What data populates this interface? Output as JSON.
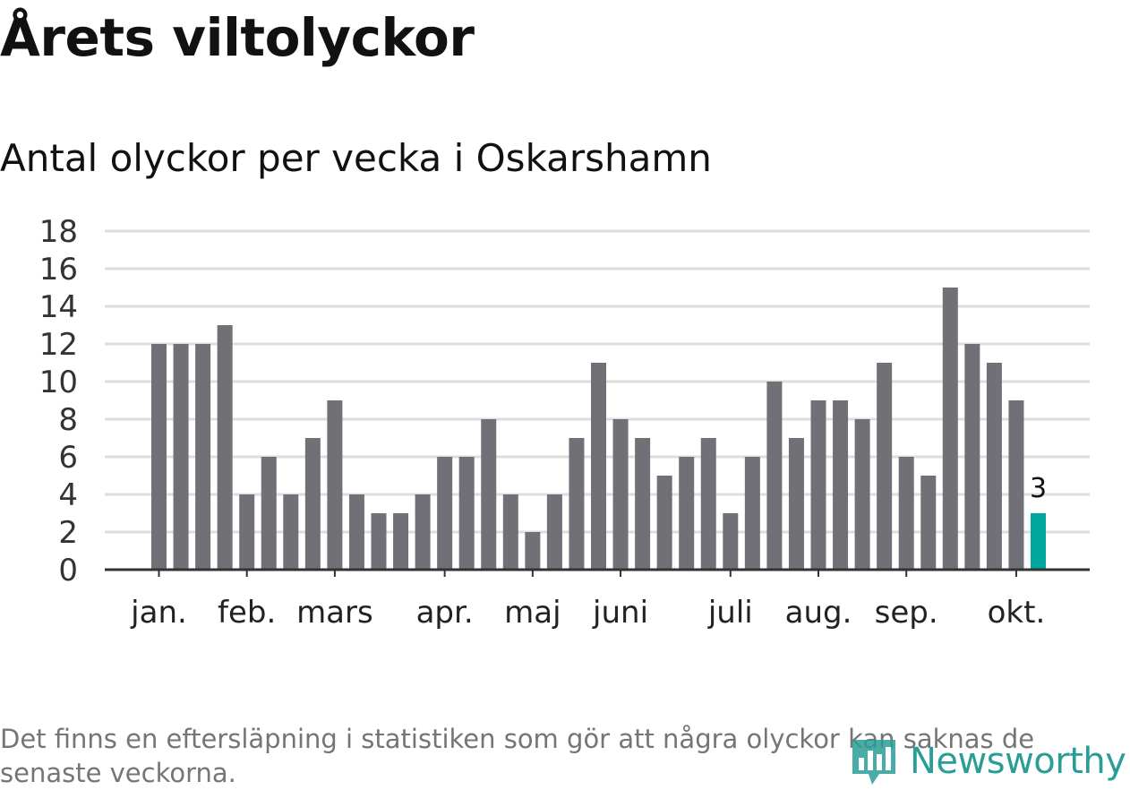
{
  "header": {
    "title": "Årets viltolyckor",
    "subtitle": "Antal olyckor per vecka i Oskarshamn"
  },
  "chart_data": {
    "type": "bar",
    "title": "Årets viltolyckor",
    "subtitle": "Antal olyckor per vecka i Oskarshamn",
    "xlabel": "",
    "ylabel": "",
    "ylim": [
      0,
      18
    ],
    "yticks": [
      0,
      2,
      4,
      6,
      8,
      10,
      12,
      14,
      16,
      18
    ],
    "grid": true,
    "legend": "none",
    "month_labels": [
      {
        "label": "jan.",
        "bar_index": 0
      },
      {
        "label": "feb.",
        "bar_index": 4
      },
      {
        "label": "mars",
        "bar_index": 8
      },
      {
        "label": "apr.",
        "bar_index": 13
      },
      {
        "label": "maj",
        "bar_index": 17
      },
      {
        "label": "juni",
        "bar_index": 21
      },
      {
        "label": "juli",
        "bar_index": 26
      },
      {
        "label": "aug.",
        "bar_index": 30
      },
      {
        "label": "sep.",
        "bar_index": 34
      },
      {
        "label": "okt.",
        "bar_index": 39
      }
    ],
    "values": [
      12,
      12,
      12,
      13,
      4,
      6,
      4,
      7,
      9,
      4,
      3,
      3,
      4,
      6,
      6,
      8,
      4,
      2,
      4,
      7,
      11,
      8,
      7,
      5,
      6,
      7,
      3,
      6,
      10,
      7,
      9,
      9,
      8,
      11,
      6,
      5,
      15,
      12,
      11,
      9,
      3
    ],
    "highlight_index": 40,
    "highlight_label": "3",
    "colors": {
      "bar": "#717077",
      "highlight": "#00a69c",
      "grid": "#dddddd",
      "axis": "#333333"
    }
  },
  "footer": {
    "note": "Det finns en eftersläpning i statistiken som gör att några olyckor kan saknas de senaste veckorna.",
    "logo_text": "Newsworthy",
    "logo_icon": "newsworthy-chart-icon",
    "logo_color": "#2a9d96"
  }
}
